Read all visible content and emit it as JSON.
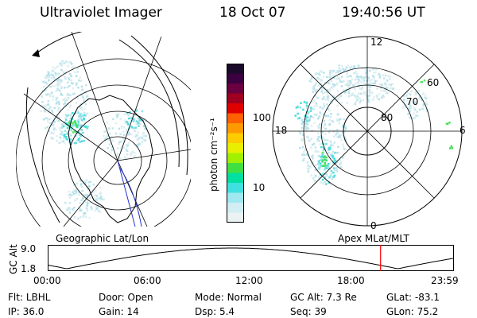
{
  "header": {
    "instrument": "Ultraviolet Imager",
    "date": "18 Oct 07",
    "time": "19:40:56 UT"
  },
  "left_panel": {
    "caption": "Geographic Lat/Lon"
  },
  "right_panel": {
    "caption": "Apex MLat/MLT",
    "lat_labels": [
      "60",
      "70",
      "80"
    ],
    "mlt_labels": {
      "top": "12",
      "bottom": "0",
      "left": "18",
      "right": "6"
    }
  },
  "colorbar": {
    "label": "photon cm⁻²s⁻¹",
    "ticks": [
      "100",
      "10"
    ],
    "colors": [
      "#1a0a2a",
      "#3a0040",
      "#6a0040",
      "#a00020",
      "#e00000",
      "#ff6000",
      "#ff9900",
      "#ffcc00",
      "#e8f000",
      "#a0f000",
      "#40e040",
      "#00e0a0",
      "#40e0e0",
      "#a0e8f0",
      "#d0eef4",
      "#eaf2f4"
    ]
  },
  "altitude_strip": {
    "y_label": "GC Alt",
    "y_ticks": [
      "9.0",
      "1.8"
    ],
    "x_ticks": [
      "00:00",
      "06:00",
      "12:00",
      "18:00",
      "23:59"
    ],
    "current_time_marker_hours": 19.68,
    "marker_color": "#ff0000"
  },
  "footer": {
    "row1": [
      {
        "key": "Flt:",
        "value": "LBHL"
      },
      {
        "key": "Door:",
        "value": "Open"
      },
      {
        "key": "Mode:",
        "value": "Normal"
      },
      {
        "key": "GC Alt:",
        "value": "7.3 Re"
      },
      {
        "key": "GLat:",
        "value": "-83.1"
      }
    ],
    "row2": [
      {
        "key": "IP:",
        "value": "36.0"
      },
      {
        "key": "Gain:",
        "value": "14"
      },
      {
        "key": "Dsp:",
        "value": "5.4"
      },
      {
        "key": "Seq:",
        "value": "39"
      },
      {
        "key": "GLon:",
        "value": "75.2"
      }
    ]
  }
}
